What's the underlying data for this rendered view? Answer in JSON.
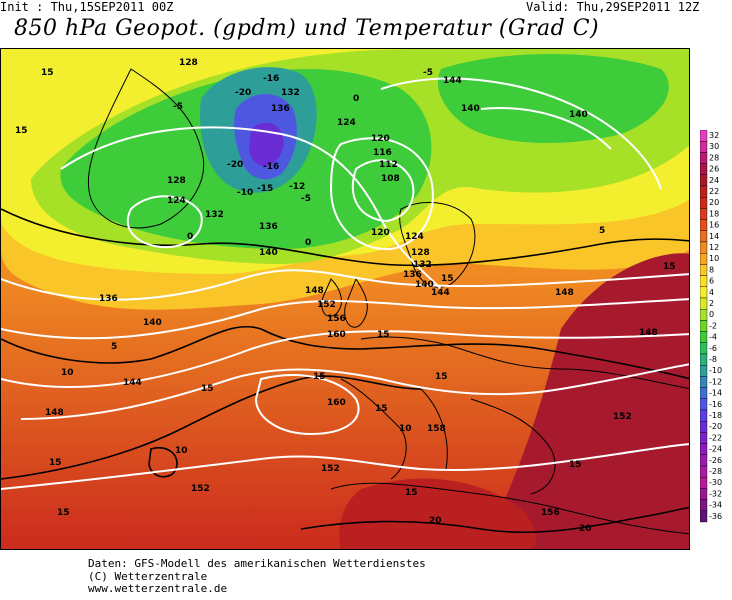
{
  "header": {
    "init": "Init : Thu,15SEP2011 00Z",
    "valid": "Valid: Thu,29SEP2011 12Z",
    "title": "850 hPa Geopot. (gpdm) und Temperatur (Grad C)"
  },
  "legend": {
    "levels": [
      32,
      30,
      28,
      26,
      24,
      22,
      20,
      18,
      16,
      14,
      12,
      10,
      8,
      6,
      4,
      2,
      0,
      -2,
      -4,
      -6,
      -8,
      -10,
      -12,
      -14,
      -16,
      -18,
      -20,
      -22,
      -24,
      -26,
      -28,
      -30,
      -32,
      -34,
      -36
    ],
    "colors": [
      "#e43fbf",
      "#d12c98",
      "#b81c6e",
      "#a9154a",
      "#a71a2d",
      "#bb2020",
      "#cb2a1d",
      "#d83b1f",
      "#e2501f",
      "#ea6e22",
      "#f08a22",
      "#f6a525",
      "#f9c528",
      "#fbe02a",
      "#f4ef2e",
      "#d6ec2a",
      "#a6e128",
      "#6dd52a",
      "#3fcc3a",
      "#2ebf5e",
      "#2cb07e",
      "#2e9f98",
      "#3388b5",
      "#3f6fd1",
      "#4d57e0",
      "#5b3fe0",
      "#6a2dd3",
      "#7a23c6",
      "#8a1db9",
      "#991cac",
      "#a81ca0",
      "#b81c93",
      "#9a1a8c",
      "#7c1780",
      "#5e1472"
    ]
  },
  "geopotential_labels": [
    "128",
    "132",
    "136",
    "124",
    "120",
    "116",
    "112",
    "108",
    "144",
    "140",
    "148",
    "152",
    "156",
    "160",
    "158"
  ],
  "temperature_labels": [
    "-20",
    "-16",
    "-15",
    "-12",
    "-10",
    "-5",
    "0",
    "5",
    "10",
    "15",
    "20"
  ],
  "footer": {
    "line1": "Daten: GFS-Modell des amerikanischen Wetterdienstes",
    "line2": "(C) Wetterzentrale",
    "line3": "www.wetterzentrale.de"
  }
}
